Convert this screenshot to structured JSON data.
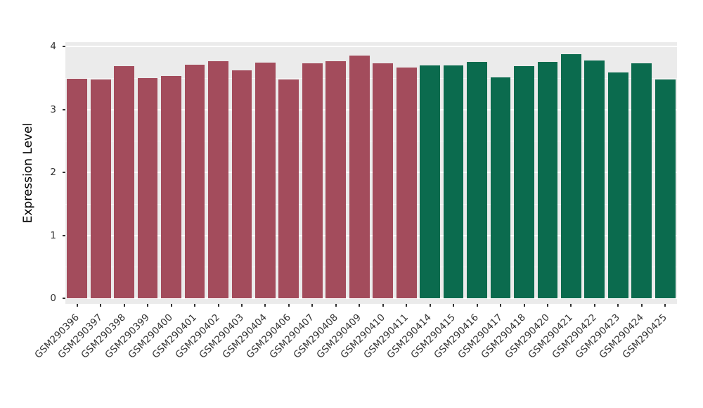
{
  "chart_data": {
    "type": "bar",
    "title": "",
    "xlabel": "",
    "ylabel": "Expression Level",
    "ylim": [
      0,
      4
    ],
    "yticks": [
      0,
      1,
      2,
      3,
      4
    ],
    "yminor": [
      0.5,
      1.5,
      2.5,
      3.5
    ],
    "legend": "none",
    "panel_bg": "#EBEBEB",
    "grid_color": "#FFFFFF",
    "axis_text_color": "#333333",
    "bar_width_frac": 0.86,
    "groups": {
      "groupA": "#A34C5C",
      "groupB": "#0B6B4E"
    },
    "samples": [
      {
        "label": "GSM290396",
        "value": 3.49,
        "group": "groupA"
      },
      {
        "label": "GSM290397",
        "value": 3.47,
        "group": "groupA"
      },
      {
        "label": "GSM290398",
        "value": 3.69,
        "group": "groupA"
      },
      {
        "label": "GSM290399",
        "value": 3.5,
        "group": "groupA"
      },
      {
        "label": "GSM290400",
        "value": 3.53,
        "group": "groupA"
      },
      {
        "label": "GSM290401",
        "value": 3.71,
        "group": "groupA"
      },
      {
        "label": "GSM290402",
        "value": 3.77,
        "group": "groupA"
      },
      {
        "label": "GSM290403",
        "value": 3.62,
        "group": "groupA"
      },
      {
        "label": "GSM290404",
        "value": 3.74,
        "group": "groupA"
      },
      {
        "label": "GSM290406",
        "value": 3.48,
        "group": "groupA"
      },
      {
        "label": "GSM290407",
        "value": 3.73,
        "group": "groupA"
      },
      {
        "label": "GSM290408",
        "value": 3.77,
        "group": "groupA"
      },
      {
        "label": "GSM290409",
        "value": 3.85,
        "group": "groupA"
      },
      {
        "label": "GSM290410",
        "value": 3.73,
        "group": "groupA"
      },
      {
        "label": "GSM290411",
        "value": 3.66,
        "group": "groupA"
      },
      {
        "label": "GSM290414",
        "value": 3.7,
        "group": "groupB"
      },
      {
        "label": "GSM290415",
        "value": 3.7,
        "group": "groupB"
      },
      {
        "label": "GSM290416",
        "value": 3.75,
        "group": "groupB"
      },
      {
        "label": "GSM290417",
        "value": 3.51,
        "group": "groupB"
      },
      {
        "label": "GSM290418",
        "value": 3.69,
        "group": "groupB"
      },
      {
        "label": "GSM290420",
        "value": 3.75,
        "group": "groupB"
      },
      {
        "label": "GSM290421",
        "value": 3.88,
        "group": "groupB"
      },
      {
        "label": "GSM290422",
        "value": 3.78,
        "group": "groupB"
      },
      {
        "label": "GSM290423",
        "value": 3.59,
        "group": "groupB"
      },
      {
        "label": "GSM290424",
        "value": 3.73,
        "group": "groupB"
      },
      {
        "label": "GSM290425",
        "value": 3.47,
        "group": "groupB"
      }
    ]
  }
}
